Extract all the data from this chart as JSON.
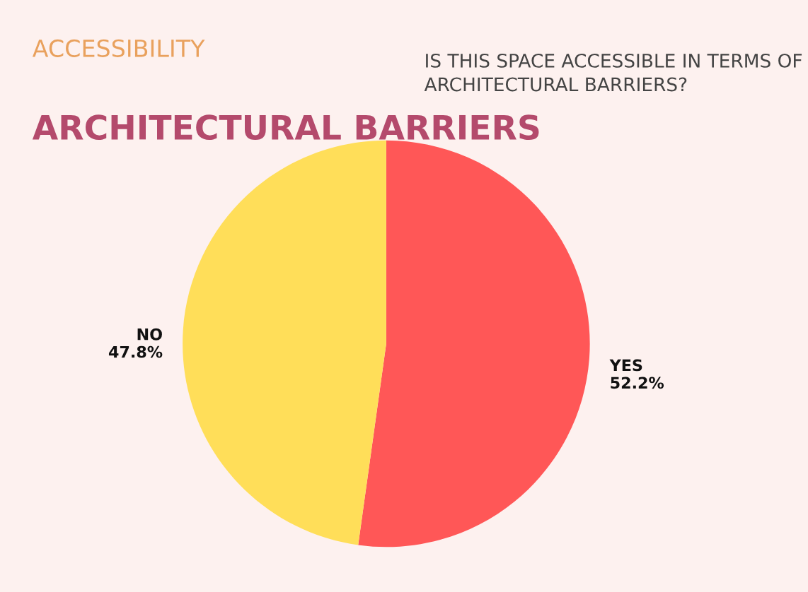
{
  "chart_data": {
    "type": "pie",
    "subtitle": "ACCESSIBILITY",
    "title": "ARCHITECTURAL BARRIERS",
    "annotations": [
      "IS THIS SPACE ACCESSIBLE IN TERMS OF ARCHITECTURAL BARRIERS?"
    ],
    "categories": [
      "YES",
      "NO"
    ],
    "values": [
      52.2,
      47.8
    ],
    "colors": [
      "#ff5757",
      "#ffde59"
    ],
    "value_labels": [
      "52.2%",
      "47.8%"
    ],
    "legend": false
  }
}
